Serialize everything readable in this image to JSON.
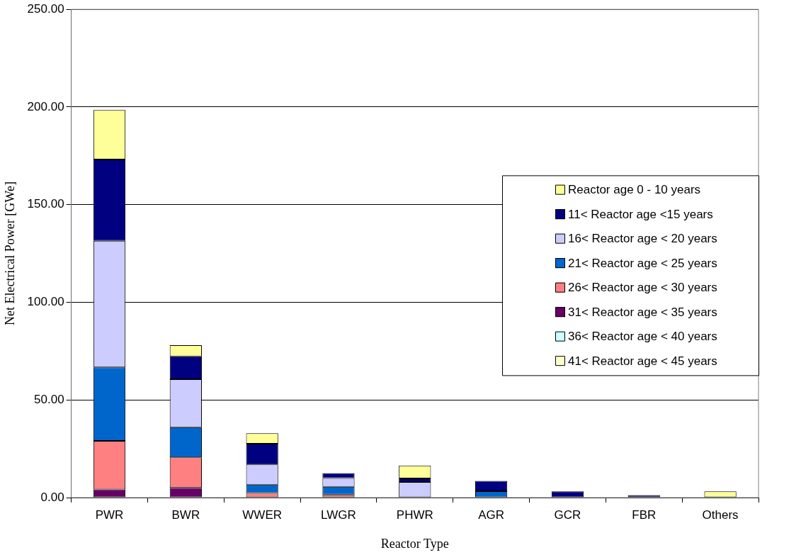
{
  "chart_data": {
    "type": "bar",
    "stacked": true,
    "xlabel": "Reactor Type",
    "ylabel": "Net Electrical Power [GWe]",
    "categories": [
      "PWR",
      "BWR",
      "WWER",
      "LWGR",
      "PHWR",
      "AGR",
      "GCR",
      "FBR",
      "Others"
    ],
    "ylim": [
      0,
      250
    ],
    "yticks": [
      {
        "value": 0,
        "label": "0.00"
      },
      {
        "value": 50,
        "label": "50.00"
      },
      {
        "value": 100,
        "label": "100.00"
      },
      {
        "value": 150,
        "label": "150.00"
      },
      {
        "value": 200,
        "label": "200.00"
      },
      {
        "value": 250,
        "label": "250.00"
      }
    ],
    "grid": "y",
    "legend": "right",
    "series": [
      {
        "name": "41< Reactor age < 45 years",
        "color": "#ffffcc",
        "values": [
          null,
          null,
          null,
          null,
          null,
          null,
          null,
          null,
          null
        ]
      },
      {
        "name": "36< Reactor age < 40 years",
        "color": "#ccffff",
        "values": [
          null,
          null,
          null,
          null,
          null,
          null,
          null,
          null,
          null
        ]
      },
      {
        "name": "31< Reactor age < 35 years",
        "color": "#660066",
        "values": [
          4.2,
          5.0,
          null,
          null,
          null,
          null,
          null,
          null,
          null
        ]
      },
      {
        "name": "26< Reactor age < 30 years",
        "color": "#ff8080",
        "values": [
          24.8,
          15.6,
          2.4,
          1.5,
          null,
          null,
          null,
          null,
          null
        ]
      },
      {
        "name": "21< Reactor age < 25 years",
        "color": "#0066cc",
        "values": [
          37.7,
          15.4,
          4.2,
          4.0,
          null,
          3.3,
          null,
          null,
          null
        ]
      },
      {
        "name": "16< Reactor age < 20 years",
        "color": "#ccccff",
        "values": [
          64.8,
          24.6,
          10.4,
          4.5,
          8.0,
          null,
          null,
          null,
          null
        ]
      },
      {
        "name": "11< Reactor age <15 years",
        "color": "#000080",
        "values": [
          41.6,
          11.7,
          10.6,
          2.5,
          1.8,
          5.2,
          3.2,
          1.3,
          null
        ]
      },
      {
        "name": "Reactor age 0 - 10 years",
        "color": "#ffff99",
        "values": [
          25.3,
          5.7,
          5.3,
          null,
          6.6,
          null,
          null,
          null,
          3.2
        ]
      }
    ]
  }
}
